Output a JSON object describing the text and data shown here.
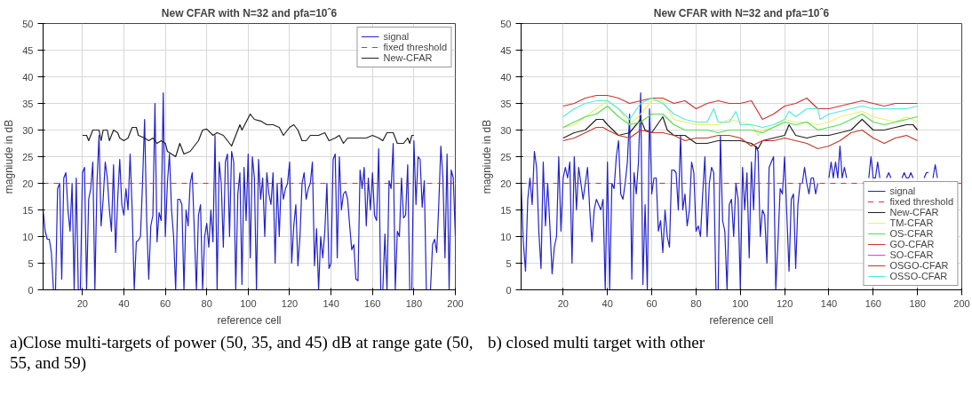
{
  "chart_data": [
    {
      "type": "line",
      "title": "New CFAR with N=32 and pfa=10ˆ6",
      "xlabel": "reference cell",
      "ylabel": "magniude in dB",
      "xlim": [
        1,
        200
      ],
      "ylim": [
        0,
        50
      ],
      "xticks": [
        20,
        40,
        60,
        80,
        100,
        120,
        140,
        160,
        180,
        200
      ],
      "yticks": [
        0,
        5,
        10,
        15,
        20,
        25,
        30,
        35,
        40,
        45,
        50
      ],
      "grid": true,
      "legend": "top right",
      "annotations": [
        "a)Close multi-targets of power (50, 35, and 45) dB at range gate (50, 55, and 59)"
      ],
      "series": [
        {
          "name": "signal",
          "color": "#2222cc",
          "x": [
            1,
            2,
            3,
            4,
            5,
            6,
            7,
            8,
            9,
            10,
            11,
            12,
            13,
            14,
            15,
            16,
            17,
            18,
            19,
            20,
            21,
            22,
            23,
            24,
            25,
            26,
            27,
            28,
            29,
            30,
            31,
            32,
            33,
            34,
            35,
            36,
            37,
            38,
            39,
            40,
            41,
            42,
            43,
            44,
            45,
            46,
            47,
            48,
            49,
            50,
            51,
            52,
            53,
            54,
            55,
            56,
            57,
            58,
            59,
            60,
            61,
            62,
            63,
            64,
            65,
            66,
            67,
            68,
            69,
            70,
            71,
            72,
            73,
            74,
            75,
            76,
            77,
            78,
            79,
            80,
            81,
            82,
            83,
            84,
            85,
            86,
            87,
            88,
            89,
            90,
            91,
            92,
            93,
            94,
            95,
            96,
            97,
            98,
            99,
            100,
            101,
            102,
            103,
            104,
            105,
            106,
            107,
            108,
            109,
            110,
            111,
            112,
            113,
            114,
            115,
            116,
            117,
            118,
            119,
            120,
            121,
            122,
            123,
            124,
            125,
            126,
            127,
            128,
            129,
            130,
            131,
            132,
            133,
            134,
            135,
            136,
            137,
            138,
            139,
            140,
            141,
            142,
            143,
            144,
            145,
            146,
            147,
            148,
            149,
            150,
            151,
            152,
            153,
            154,
            155,
            156,
            157,
            158,
            159,
            160,
            161,
            162,
            163,
            164,
            165,
            166,
            167,
            168,
            169,
            170,
            171,
            172,
            173,
            174,
            175,
            176,
            177,
            178,
            179,
            180,
            181,
            182,
            183,
            184,
            185,
            186,
            187,
            188,
            189,
            190,
            191,
            192,
            193,
            194,
            195,
            196,
            197,
            198,
            199,
            200
          ],
          "values": [
            15,
            11,
            9.5,
            9.5,
            7,
            0,
            0,
            19,
            20,
            2,
            21,
            22,
            15,
            11,
            20,
            0,
            21,
            0,
            0,
            22,
            23,
            0,
            17,
            19,
            24,
            0,
            20,
            29,
            12,
            17,
            24,
            21,
            15,
            11,
            23.5,
            7,
            17,
            24.5,
            16,
            14,
            19,
            15,
            25.5,
            15,
            0,
            9,
            9.3,
            10,
            20,
            32,
            13,
            2,
            12,
            14,
            35,
            9,
            14.5,
            13,
            37,
            10,
            20,
            25.5,
            15,
            10,
            0,
            17,
            17,
            16,
            0,
            15,
            12,
            20,
            22,
            11,
            0,
            14,
            16,
            0,
            10,
            12.5,
            8,
            15,
            9,
            29,
            0,
            24,
            20,
            8,
            24,
            25.5,
            10,
            26,
            24,
            0,
            18,
            22,
            1,
            23,
            13,
            25.5,
            6,
            25,
            21,
            0,
            24.5,
            17,
            21,
            10,
            22,
            18,
            16,
            22,
            5,
            20,
            10,
            21,
            17,
            19,
            20,
            24,
            5,
            12,
            16,
            4.5,
            10,
            20,
            22,
            17,
            19,
            20,
            24,
            4.5,
            11.5,
            0,
            10,
            6,
            11,
            20,
            4,
            5,
            24.5,
            25.5,
            6,
            25,
            15,
            18,
            18.5,
            17,
            12,
            7.5,
            8.5,
            2,
            1.7,
            22.5,
            19,
            23,
            12,
            21,
            15,
            22,
            14,
            13,
            26.5,
            0,
            0,
            10.5,
            0,
            20.5,
            19,
            27.5,
            0,
            11,
            10,
            21,
            13.5,
            14,
            23.5,
            0,
            0,
            28,
            16,
            25,
            24.5,
            15.5,
            20.5,
            0,
            0,
            0,
            8.5,
            9.5,
            7,
            16,
            27,
            21,
            6,
            25.5,
            0,
            22.5,
            21,
            10
          ]
        },
        {
          "name": "fixed threshold",
          "color": "#e03030",
          "line_style": "dashed",
          "x": [
            1,
            200
          ],
          "values": [
            20,
            20
          ]
        },
        {
          "name": "New-CFAR",
          "color": "#222222",
          "x": [
            20,
            22,
            23,
            25,
            28,
            29,
            30,
            32,
            33,
            35,
            37,
            38,
            40,
            42,
            44,
            46,
            47,
            50,
            52,
            54,
            56,
            58,
            60,
            61,
            63,
            65,
            67,
            69,
            72,
            74,
            76,
            78,
            80,
            83,
            85,
            88,
            90,
            92,
            94,
            96,
            97,
            99,
            101,
            103,
            106,
            109,
            112,
            115,
            117,
            120,
            122,
            124,
            126,
            128,
            130,
            134,
            137,
            139,
            142,
            144,
            146,
            148,
            152,
            157,
            160,
            163,
            165,
            167,
            170,
            172,
            175,
            177,
            178,
            179,
            180
          ],
          "values": [
            29,
            29,
            28,
            30,
            30,
            28,
            30,
            30,
            28,
            30,
            29.5,
            28.5,
            28,
            28.5,
            30.5,
            30.5,
            29,
            28.5,
            28,
            28.5,
            27.5,
            28,
            27.5,
            26,
            25.5,
            25,
            27.5,
            25.5,
            26,
            27,
            28,
            30,
            30.2,
            29,
            29.5,
            29,
            28,
            27,
            29,
            31,
            30,
            31.5,
            33,
            32,
            31.7,
            31,
            31,
            30.5,
            29,
            30.5,
            31,
            30,
            28,
            28,
            29,
            29,
            29.5,
            28,
            28.5,
            29,
            27.5,
            28.5,
            28.5,
            28.5,
            29,
            28.5,
            28,
            29.5,
            29.5,
            27.5,
            27.5,
            28.5,
            27.5,
            29,
            29
          ]
        }
      ]
    },
    {
      "type": "line",
      "title": "New CFAR with N=32 and pfa=10ˆ6",
      "xlabel": "reference cell",
      "ylabel": "magniude in dB",
      "xlim": [
        1,
        200
      ],
      "ylim": [
        0,
        50
      ],
      "xticks": [
        20,
        40,
        60,
        80,
        100,
        120,
        140,
        160,
        180,
        200
      ],
      "yticks": [
        0,
        5,
        10,
        15,
        20,
        25,
        30,
        35,
        40,
        45,
        50
      ],
      "grid": true,
      "legend": "bottom right",
      "annotations": [
        "b) closed multi target with other"
      ],
      "series": [
        {
          "name": "signal",
          "color": "#2222cc",
          "x": [
            1,
            2,
            3,
            4,
            5,
            6,
            7,
            8,
            9,
            10,
            11,
            12,
            13,
            14,
            15,
            16,
            17,
            18,
            19,
            20,
            21,
            22,
            23,
            24,
            25,
            26,
            27,
            28,
            29,
            30,
            31,
            32,
            33,
            34,
            35,
            36,
            37,
            38,
            39,
            40,
            41,
            42,
            43,
            44,
            45,
            46,
            47,
            48,
            49,
            50,
            51,
            52,
            53,
            54,
            55,
            56,
            57,
            58,
            59,
            60,
            61,
            62,
            63,
            64,
            65,
            66,
            67,
            68,
            69,
            70,
            71,
            72,
            73,
            74,
            75,
            76,
            77,
            78,
            79,
            80,
            81,
            82,
            83,
            84,
            85,
            86,
            87,
            88,
            89,
            90,
            91,
            92,
            93,
            94,
            95,
            96,
            97,
            98,
            99,
            100,
            101,
            102,
            103,
            104,
            105,
            106,
            107,
            108,
            109,
            110,
            111,
            112,
            113,
            114,
            115,
            116,
            117,
            118,
            119,
            120,
            121,
            122,
            123,
            124,
            125,
            126,
            127,
            128,
            129,
            130,
            131,
            132,
            133,
            134,
            135,
            136,
            137,
            138,
            139,
            140,
            141,
            142,
            143,
            144,
            145,
            146,
            147,
            148,
            149,
            150,
            151,
            152,
            153,
            154,
            155,
            156,
            157,
            158,
            159,
            160,
            161,
            162,
            163,
            164,
            165,
            166,
            167,
            168,
            169,
            170,
            171,
            172,
            173,
            174,
            175,
            176,
            177,
            178,
            179,
            180,
            181,
            182,
            183,
            184,
            185,
            186,
            187,
            188,
            189
          ],
          "values": [
            20,
            9,
            3.5,
            17,
            21,
            16,
            26,
            23,
            11,
            4,
            24,
            12,
            20,
            12,
            3,
            8,
            10,
            25,
            11,
            21,
            23,
            21,
            24,
            5,
            25,
            15,
            23,
            20,
            17,
            20,
            23,
            15,
            9,
            15,
            17,
            16,
            15,
            17,
            0,
            24,
            0,
            20,
            19,
            25,
            28,
            18,
            17,
            20,
            24,
            33,
            2,
            22,
            18,
            24,
            37,
            1,
            16,
            0,
            34,
            18,
            21,
            21,
            11,
            13,
            7,
            15,
            10,
            8,
            22.5,
            22.5,
            22,
            15,
            29,
            15,
            18,
            12,
            15,
            24,
            22,
            11,
            12,
            10,
            18,
            25,
            10,
            20,
            23,
            22,
            0,
            0,
            29,
            13,
            11,
            0,
            16,
            17,
            10,
            20,
            17,
            0,
            23,
            15,
            22,
            6,
            24,
            15,
            27,
            26,
            10,
            15,
            14,
            5,
            23,
            24,
            25,
            0,
            9,
            19,
            18,
            25,
            14,
            3.5,
            17,
            18,
            4,
            16,
            20,
            20,
            23,
            20,
            18,
            21,
            21,
            18,
            20,
            null,
            null,
            null,
            null,
            21,
            24,
            21,
            24,
            21,
            27,
            21,
            23,
            21,
            null,
            null,
            null,
            null,
            null,
            null,
            null,
            null,
            null,
            21,
            25,
            21,
            21,
            24,
            21,
            null,
            null,
            21,
            22,
            21,
            null,
            null,
            null,
            null,
            21,
            22,
            21,
            21,
            22,
            21,
            null,
            null,
            null,
            null,
            21,
            22,
            22,
            null,
            21,
            23.5,
            21
          ]
        },
        {
          "name": "fixed threshold",
          "color": "#e03030",
          "line_style": "dashed",
          "x": [
            1,
            200
          ],
          "values": [
            20,
            20
          ]
        },
        {
          "name": "New-CFAR",
          "color": "#222222",
          "x": [
            20,
            25,
            30,
            35,
            38,
            40,
            45,
            50,
            55,
            57,
            60,
            65,
            67,
            70,
            75,
            80,
            85,
            90,
            95,
            100,
            105,
            108,
            110,
            115,
            120,
            122,
            125,
            130,
            135,
            140,
            145,
            150,
            155,
            160,
            165,
            170,
            175,
            178,
            180
          ],
          "values": [
            28.5,
            29.5,
            30,
            32,
            32,
            31,
            29,
            29.5,
            32,
            30,
            29.5,
            32.5,
            30,
            29,
            29,
            27.5,
            27.5,
            28,
            28,
            28,
            27.5,
            26.5,
            28,
            28.5,
            29,
            31,
            29,
            28.5,
            29,
            29,
            29.5,
            30,
            32,
            30,
            30,
            30.5,
            31,
            31,
            30
          ]
        },
        {
          "name": "TM-CFAR",
          "color": "#e8f070",
          "x": [
            20,
            25,
            30,
            35,
            40,
            45,
            50,
            55,
            60,
            65,
            70,
            75,
            80,
            85,
            90,
            95,
            100,
            105,
            108,
            110,
            115,
            120,
            125,
            130,
            135,
            140,
            145,
            150,
            155,
            160,
            165,
            170,
            175,
            180
          ],
          "values": [
            30.5,
            31,
            32.5,
            34,
            35.5,
            34,
            31,
            33,
            35.5,
            35.5,
            32,
            31.5,
            31,
            31,
            31,
            32,
            31.5,
            31,
            29,
            30,
            30.5,
            32,
            31.5,
            31.5,
            31,
            31.5,
            32.5,
            33,
            33.5,
            32.5,
            32,
            31.5,
            32.5,
            31.5
          ]
        },
        {
          "name": "OS-CFAR",
          "color": "#55dd55",
          "x": [
            20,
            25,
            30,
            35,
            40,
            45,
            50,
            55,
            60,
            65,
            70,
            75,
            80,
            85,
            90,
            95,
            100,
            105,
            110,
            115,
            120,
            125,
            130,
            135,
            140,
            145,
            150,
            155,
            160,
            165,
            170,
            175,
            180
          ],
          "values": [
            30.5,
            31.5,
            32.5,
            33,
            34.5,
            32.5,
            31,
            31.5,
            33,
            33,
            31,
            30,
            30,
            30,
            29.5,
            30,
            30,
            30,
            29.5,
            30.5,
            31.5,
            31,
            31.5,
            30,
            30.5,
            31,
            32,
            33,
            31.5,
            31,
            31.5,
            32,
            32.5
          ]
        },
        {
          "name": "GO-CFAR",
          "color": "#cc3333",
          "x": [
            20,
            25,
            30,
            35,
            40,
            45,
            50,
            55,
            60,
            65,
            70,
            75,
            80,
            85,
            90,
            95,
            100,
            105,
            110,
            115,
            120,
            125,
            130,
            135,
            140,
            145,
            150,
            155,
            160,
            165,
            170,
            175,
            180
          ],
          "values": [
            34.5,
            35,
            36,
            36.5,
            36.5,
            36,
            35,
            35.5,
            36,
            36,
            35,
            35.5,
            34,
            35,
            35.5,
            35,
            35,
            35.5,
            32,
            33,
            34.5,
            35,
            36,
            34,
            34,
            34.5,
            35,
            35.5,
            35,
            34.5,
            35,
            35,
            35
          ]
        },
        {
          "name": "SO-CFAR",
          "color": "#e040e0"
        },
        {
          "name": "OSGO-CFAR",
          "color": "#c0392b",
          "x": [
            20,
            25,
            30,
            35,
            38,
            40,
            45,
            50,
            55,
            60,
            65,
            70,
            75,
            80,
            85,
            90,
            95,
            100,
            105,
            110,
            115,
            120,
            125,
            130,
            135,
            140,
            145,
            150,
            155,
            160,
            165,
            170,
            175,
            180
          ],
          "values": [
            28,
            28.5,
            29.5,
            30.5,
            30.5,
            30,
            29,
            28.5,
            30,
            29.5,
            29.5,
            29,
            28,
            28.5,
            28.5,
            29,
            29,
            28.5,
            27,
            28,
            28,
            28.5,
            28,
            27.5,
            26.5,
            27,
            28,
            29.5,
            30,
            28.5,
            27.5,
            28.5,
            29,
            28
          ]
        },
        {
          "name": "OSSO-CFAR",
          "color": "#55e8e0",
          "x": [
            20,
            25,
            30,
            35,
            40,
            45,
            50,
            55,
            60,
            65,
            70,
            75,
            80,
            85,
            88,
            90,
            95,
            98,
            100,
            105,
            110,
            115,
            120,
            122,
            125,
            130,
            135,
            136,
            140,
            145,
            150,
            155,
            160,
            165,
            170,
            175,
            180
          ],
          "values": [
            32.5,
            34,
            35,
            35.5,
            35.5,
            34,
            32,
            35,
            36,
            35,
            33,
            32,
            31.5,
            31.5,
            34,
            31.5,
            31.5,
            33.5,
            31,
            31,
            30.5,
            31,
            32,
            33.5,
            32.5,
            34,
            34,
            32,
            33,
            33.5,
            34,
            34.5,
            34,
            34,
            34,
            34,
            34.5
          ]
        }
      ]
    }
  ]
}
